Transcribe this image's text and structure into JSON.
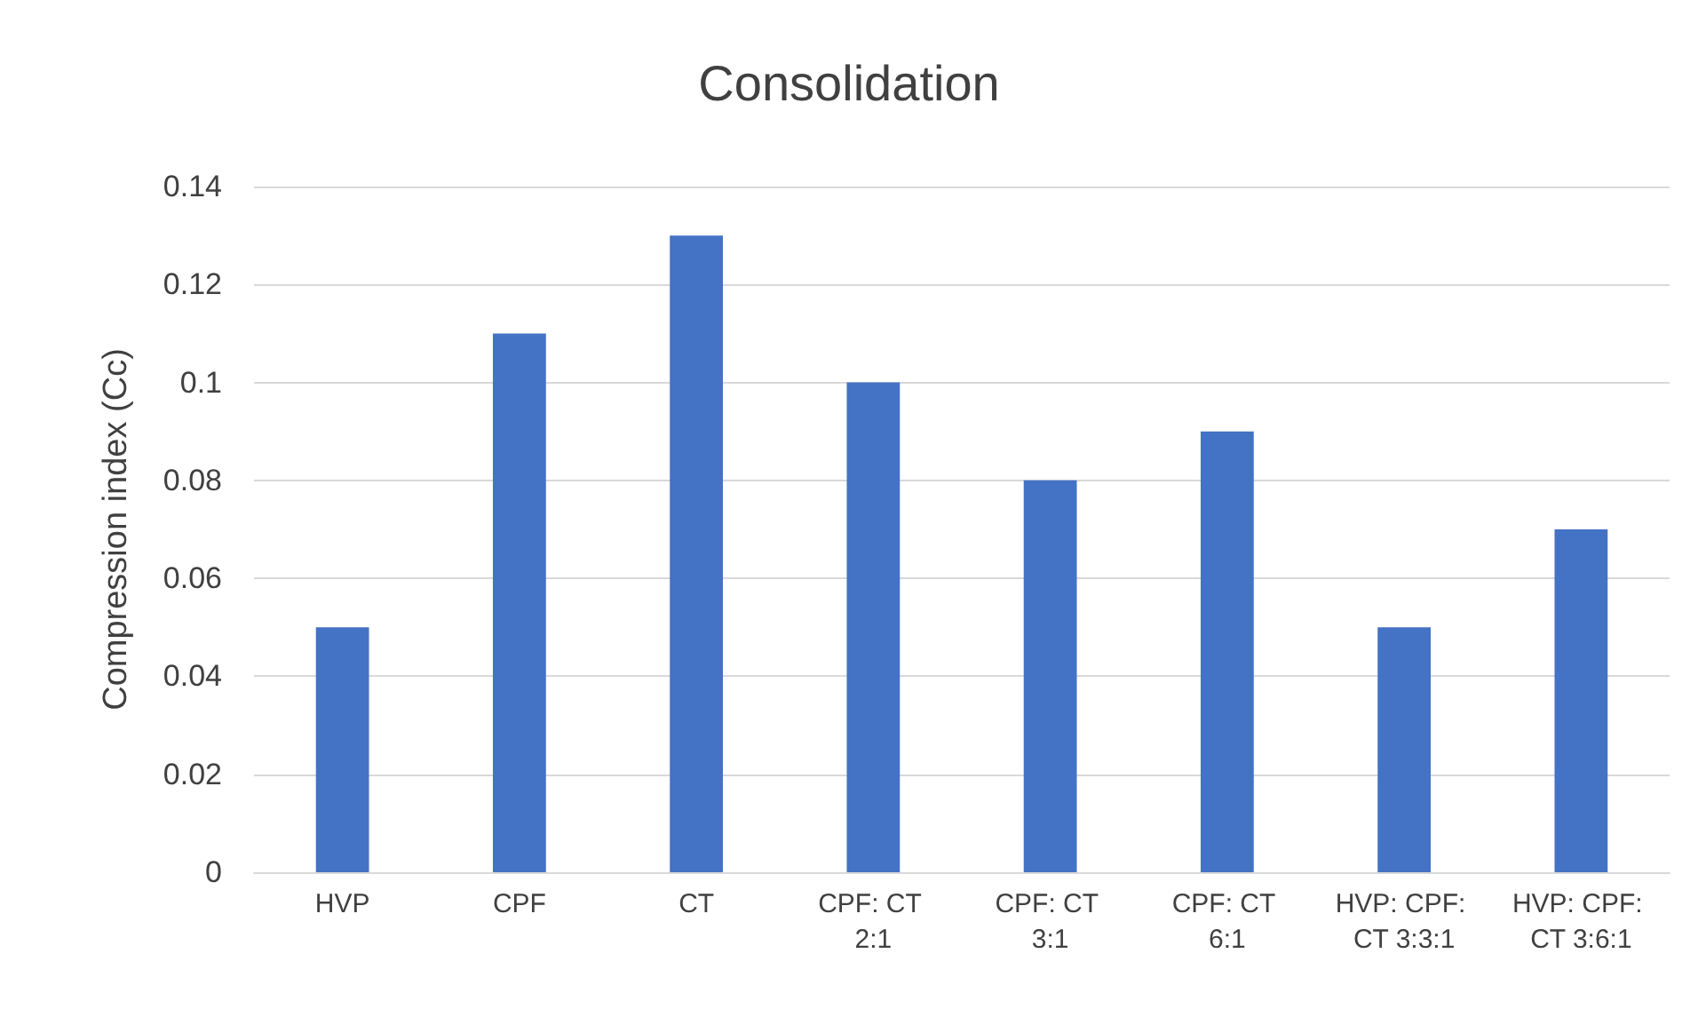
{
  "chart_data": {
    "type": "bar",
    "title": "Consolidation",
    "ylabel": "Compression index (Cc)",
    "categories": [
      "HVP",
      "CPF",
      "CT",
      "CPF: CT 2:1",
      "CPF: CT 3:1",
      "CPF: CT 6:1",
      "HVP: CPF: CT 3:3:1",
      "HVP: CPF: CT 3:6:1"
    ],
    "values": [
      0.05,
      0.11,
      0.13,
      0.1,
      0.08,
      0.09,
      0.05,
      0.07
    ],
    "color": "#4472c4",
    "ylim": [
      0,
      0.14
    ],
    "yticks": [
      0,
      0.02,
      0.04,
      0.06,
      0.08,
      0.1,
      0.12,
      0.14
    ],
    "grid": true
  }
}
